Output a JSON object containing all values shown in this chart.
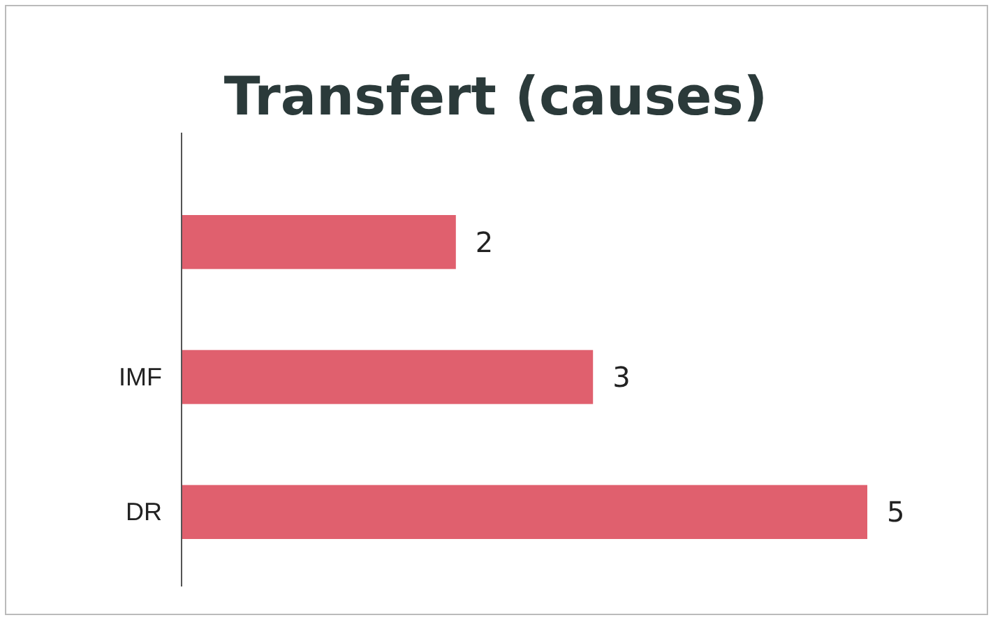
{
  "chart_data": {
    "type": "bar",
    "orientation": "horizontal",
    "title": "Transfert (causes)",
    "categories": [
      null,
      "IMF",
      "DR"
    ],
    "values": [
      2,
      3,
      5
    ],
    "color": "#e0606e",
    "data_labels": true
  }
}
